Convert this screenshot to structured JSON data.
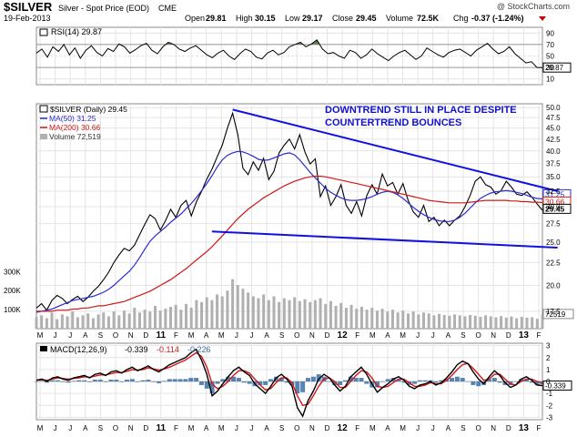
{
  "header": {
    "symbol": "$SILVER",
    "description": "Silver - Spot Price (EOD)",
    "exchange": "CME",
    "date": "19-Feb-2013",
    "watermark": "@ StockCharts.com",
    "quote": {
      "open_label": "Open",
      "open": "29.81",
      "high_label": "High",
      "high": "30.15",
      "low_label": "Low",
      "low": "29.17",
      "close_label": "Close",
      "close": "29.45",
      "volume_label": "Volume",
      "volume": "72.5K",
      "chg_label": "Chg",
      "chg": "-0.37 (-1.24%)"
    }
  },
  "colors": {
    "price": "#000000",
    "ma50": "#2a2ad0",
    "ma200": "#d01818",
    "volume": "#b0b0b0",
    "rsi_fill": "#4a7a3a",
    "trendline": "#1010e0",
    "annotation": "#1010d0",
    "macd_hist": "#3a6ea5",
    "chg_neg": "#c00000"
  },
  "chart_data": [
    {
      "type": "line",
      "panel": "rsi",
      "title": "RSI(14) 29.87",
      "ylim": [
        0,
        100
      ],
      "y_ticks": [
        "90",
        "70",
        "50",
        "30",
        "10"
      ],
      "last_value_label": "29.87",
      "series": [
        {
          "name": "RSI(14)",
          "values": [
            55,
            62,
            48,
            66,
            58,
            70,
            52,
            64,
            46,
            60,
            68,
            56,
            50,
            63,
            58,
            71,
            66,
            55,
            61,
            68,
            72,
            60,
            54,
            66,
            74,
            70,
            62,
            58,
            64,
            68,
            60,
            52,
            47,
            55,
            60,
            50,
            44,
            54,
            62,
            58,
            48,
            45,
            55,
            60,
            52,
            56,
            66,
            70,
            74,
            66,
            71,
            78,
            62,
            54,
            56,
            50,
            46,
            60,
            56,
            46,
            52,
            62,
            54,
            48,
            42,
            50,
            56,
            60,
            52,
            44,
            50,
            64,
            58,
            52,
            48,
            56,
            60,
            62,
            56,
            50,
            60,
            66,
            72,
            62,
            54,
            58,
            66,
            54,
            46,
            38,
            40,
            30,
            29.87
          ]
        }
      ]
    },
    {
      "type": "line",
      "panel": "price",
      "title": "$SILVER (Daily) 29.45",
      "ylim": [
        16,
        51
      ],
      "y_ticks": [
        "50.0",
        "47.5",
        "45.0",
        "42.5",
        "40.0",
        "37.5",
        "35.0",
        "32.5",
        "30.0",
        "27.5",
        "25.0",
        "22.5",
        "20.0",
        "17.5"
      ],
      "scale": "log",
      "legend": [
        "$SILVER (Daily) 29.45",
        "MA(50) 31.25",
        "MA(200) 30.66",
        "Volume 72,519"
      ],
      "legend_placement": "top-left",
      "last_labels": {
        "ma50": "31.25",
        "ma200": "30.66",
        "price": "29.45",
        "volume": "72519"
      },
      "volume_ticks": [
        "300K",
        "200K",
        "100K"
      ],
      "x_month_labels": [
        "M",
        "J",
        "J",
        "A",
        "S",
        "O",
        "N",
        "D",
        "11",
        "F",
        "M",
        "A",
        "M",
        "J",
        "J",
        "A",
        "S",
        "O",
        "N",
        "D",
        "12",
        "F",
        "M",
        "A",
        "M",
        "J",
        "J",
        "A",
        "S",
        "O",
        "N",
        "D",
        "13",
        "F"
      ],
      "series": [
        {
          "name": "$SILVER (Daily)",
          "values": [
            17.8,
            18.2,
            17.6,
            18.5,
            19.0,
            18.7,
            18.2,
            18.6,
            18.9,
            18.4,
            18.8,
            19.4,
            19.9,
            20.6,
            21.4,
            22.5,
            23.4,
            24.2,
            23.9,
            24.6,
            26.0,
            27.4,
            28.8,
            28.2,
            26.6,
            27.9,
            29.6,
            28.4,
            30.2,
            31.0,
            28.6,
            30.8,
            32.5,
            34.6,
            36.4,
            38.8,
            41.2,
            45.0,
            48.6,
            43.5,
            36.6,
            35.4,
            37.8,
            36.2,
            38.5,
            34.5,
            36.0,
            39.6,
            41.2,
            42.5,
            40.4,
            43.5,
            39.8,
            37.4,
            38.4,
            31.6,
            33.4,
            30.2,
            31.6,
            33.6,
            30.2,
            29.0,
            30.8,
            28.6,
            31.8,
            33.6,
            32.0,
            35.5,
            33.4,
            34.0,
            32.0,
            33.8,
            31.0,
            29.2,
            28.4,
            30.2,
            27.8,
            28.4,
            27.2,
            28.0,
            27.2,
            28.0,
            28.6,
            30.0,
            31.8,
            34.2,
            35.0,
            33.6,
            33.2,
            32.0,
            32.6,
            34.2,
            33.2,
            32.0,
            31.8,
            32.4,
            31.5,
            30.4,
            29.45
          ]
        },
        {
          "name": "MA(50)",
          "values": [
            17.4,
            17.5,
            17.6,
            17.7,
            17.9,
            18.1,
            18.3,
            18.5,
            18.6,
            18.7,
            18.8,
            18.9,
            19.1,
            19.3,
            19.6,
            20.0,
            20.5,
            21.0,
            21.5,
            22.2,
            23.1,
            24.1,
            25.1,
            25.8,
            26.4,
            27.0,
            27.7,
            28.3,
            28.9,
            29.7,
            30.5,
            31.5,
            32.6,
            33.8,
            35.2,
            36.8,
            38.2,
            39.1,
            39.6,
            39.9,
            39.8,
            39.4,
            38.9,
            38.3,
            38.1,
            38.2,
            38.6,
            39.0,
            39.4,
            39.6,
            39.2,
            38.2,
            37.0,
            35.8,
            34.8,
            33.9,
            33.0,
            32.3,
            31.8,
            31.4,
            31.1,
            31.0,
            31.0,
            31.1,
            31.3,
            31.6,
            32.0,
            32.3,
            32.5,
            32.3,
            31.9,
            31.3,
            30.6,
            29.9,
            29.3,
            28.8,
            28.4,
            28.1,
            27.9,
            27.8,
            27.8,
            28.0,
            28.4,
            29.0,
            29.8,
            30.6,
            31.3,
            31.8,
            32.2,
            32.4,
            32.5,
            32.6,
            32.5,
            32.3,
            32.1,
            31.8,
            31.5,
            31.3,
            31.25
          ]
        },
        {
          "name": "MA(200)",
          "values": [
            17.5,
            17.5,
            17.5,
            17.5,
            17.6,
            17.6,
            17.6,
            17.7,
            17.7,
            17.8,
            17.8,
            17.9,
            18.0,
            18.0,
            18.1,
            18.2,
            18.3,
            18.4,
            18.6,
            18.8,
            19.0,
            19.2,
            19.4,
            19.7,
            20.0,
            20.3,
            20.6,
            21.0,
            21.4,
            21.8,
            22.3,
            22.8,
            23.3,
            23.8,
            24.4,
            25.1,
            25.8,
            26.6,
            27.4,
            28.2,
            28.9,
            29.6,
            30.2,
            30.8,
            31.4,
            31.9,
            32.4,
            32.9,
            33.4,
            33.8,
            34.2,
            34.5,
            34.8,
            35.0,
            35.1,
            35.1,
            35.0,
            34.8,
            34.6,
            34.4,
            34.2,
            34.0,
            33.8,
            33.6,
            33.4,
            33.2,
            33.0,
            32.8,
            32.6,
            32.4,
            32.2,
            32.0,
            31.8,
            31.6,
            31.4,
            31.2,
            31.0,
            30.9,
            30.8,
            30.7,
            30.6,
            30.6,
            30.6,
            30.6,
            30.7,
            30.8,
            30.9,
            31.0,
            31.0,
            31.0,
            31.0,
            31.0,
            30.9,
            30.9,
            30.8,
            30.8,
            30.7,
            30.7,
            30.66
          ]
        },
        {
          "name": "Volume",
          "values": [
            60,
            70,
            55,
            85,
            50,
            75,
            65,
            90,
            60,
            70,
            80,
            55,
            75,
            85,
            65,
            90,
            70,
            95,
            80,
            110,
            85,
            100,
            90,
            120,
            95,
            105,
            115,
            125,
            100,
            130,
            110,
            150,
            140,
            165,
            150,
            180,
            170,
            200,
            260,
            230,
            210,
            190,
            170,
            160,
            180,
            150,
            170,
            140,
            160,
            150,
            165,
            145,
            155,
            140,
            150,
            160,
            130,
            145,
            120,
            135,
            110,
            125,
            105,
            115,
            100,
            110,
            95,
            105,
            90,
            100,
            85,
            95,
            80,
            90,
            75,
            85,
            80,
            70,
            78,
            72,
            68,
            75,
            70,
            65,
            72,
            68,
            62,
            70,
            65,
            60,
            66,
            58,
            64,
            55,
            62,
            58,
            60,
            52,
            72.5
          ]
        }
      ]
    },
    {
      "type": "line",
      "panel": "macd",
      "title": "MACD(12,26,9) -0.339, -0.114, -0.226",
      "legend": [
        "MACD(12,26,9)",
        "-0.339",
        "-0.114",
        "-0.226"
      ],
      "ylim": [
        -3.2,
        3.2
      ],
      "y_ticks": [
        "3",
        "2",
        "1",
        "0",
        "-1",
        "-2",
        "-3"
      ],
      "last_value_label": "-0.339",
      "x_month_labels": [
        "M",
        "J",
        "J",
        "A",
        "S",
        "O",
        "N",
        "D",
        "11",
        "F",
        "M",
        "A",
        "M",
        "J",
        "J",
        "A",
        "S",
        "O",
        "N",
        "D",
        "12",
        "F",
        "M",
        "A",
        "M",
        "J",
        "J",
        "A",
        "S",
        "O",
        "N",
        "D",
        "13",
        "F"
      ],
      "series": [
        {
          "name": "MACD",
          "values": [
            0.1,
            0.2,
            0.0,
            0.3,
            0.4,
            0.2,
            0.1,
            0.3,
            0.4,
            0.5,
            0.3,
            0.6,
            0.7,
            0.5,
            0.8,
            0.9,
            0.7,
            1.0,
            1.2,
            0.9,
            1.1,
            1.3,
            1.0,
            0.8,
            1.1,
            1.4,
            1.6,
            1.8,
            2.0,
            2.4,
            2.7,
            1.8,
            0.6,
            -1.2,
            -0.8,
            -0.2,
            0.4,
            0.9,
            1.2,
            0.8,
            0.5,
            -0.2,
            -0.6,
            -1.0,
            -0.4,
            0.3,
            0.6,
            0.2,
            -0.4,
            -2.2,
            -2.9,
            -1.6,
            -0.8,
            0.2,
            0.6,
            0.3,
            -0.3,
            -0.8,
            -0.4,
            0.4,
            0.8,
            1.2,
            0.6,
            -0.2,
            -0.9,
            -0.5,
            -0.2,
            0.2,
            0.4,
            0.1,
            -0.4,
            -0.6,
            -0.3,
            -0.2,
            0.0,
            -0.3,
            -0.1,
            0.3,
            0.8,
            1.4,
            1.7,
            1.5,
            0.8,
            0.2,
            -0.2,
            0.4,
            0.9,
            0.5,
            -0.1,
            -0.5,
            -0.3,
            0.2,
            0.4,
            0.1,
            -0.3,
            -0.34
          ]
        },
        {
          "name": "Signal",
          "values": [
            0.1,
            0.15,
            0.1,
            0.2,
            0.3,
            0.25,
            0.2,
            0.25,
            0.3,
            0.4,
            0.35,
            0.45,
            0.55,
            0.55,
            0.65,
            0.75,
            0.75,
            0.85,
            1.0,
            0.95,
            1.0,
            1.15,
            1.05,
            0.95,
            1.05,
            1.2,
            1.4,
            1.6,
            1.8,
            2.1,
            2.4,
            2.1,
            1.2,
            -0.2,
            -0.6,
            -0.4,
            0.0,
            0.5,
            0.9,
            0.9,
            0.7,
            0.2,
            -0.3,
            -0.7,
            -0.6,
            -0.1,
            0.3,
            0.3,
            -0.1,
            -1.2,
            -2.0,
            -1.9,
            -1.2,
            -0.4,
            0.2,
            0.3,
            0.0,
            -0.5,
            -0.5,
            0.0,
            0.5,
            0.9,
            0.8,
            0.3,
            -0.4,
            -0.5,
            -0.4,
            -0.1,
            0.2,
            0.2,
            -0.1,
            -0.4,
            -0.4,
            -0.3,
            -0.1,
            -0.2,
            -0.2,
            0.1,
            0.5,
            1.0,
            1.4,
            1.5,
            1.1,
            0.6,
            0.1,
            0.2,
            0.6,
            0.6,
            0.2,
            -0.2,
            -0.3,
            0.0,
            0.2,
            0.2,
            0.0,
            -0.11
          ]
        },
        {
          "name": "Histogram",
          "values": [
            0.0,
            0.05,
            -0.1,
            0.1,
            0.1,
            -0.05,
            -0.1,
            0.05,
            0.1,
            0.1,
            -0.05,
            0.15,
            0.15,
            -0.05,
            0.15,
            0.15,
            -0.05,
            0.15,
            0.2,
            -0.05,
            0.1,
            0.15,
            -0.05,
            -0.15,
            0.05,
            0.2,
            0.2,
            0.2,
            0.2,
            0.3,
            0.3,
            -0.3,
            -0.6,
            -1.0,
            -0.2,
            0.2,
            0.4,
            0.4,
            0.3,
            -0.1,
            -0.2,
            -0.4,
            -0.3,
            -0.3,
            0.2,
            0.4,
            0.3,
            -0.1,
            -0.3,
            -1.0,
            -0.9,
            0.3,
            0.4,
            0.6,
            0.4,
            0.0,
            -0.3,
            -0.3,
            0.1,
            0.4,
            0.3,
            0.3,
            -0.2,
            -0.5,
            -0.5,
            0.0,
            0.2,
            0.3,
            0.2,
            -0.1,
            -0.3,
            -0.2,
            0.1,
            0.1,
            0.1,
            -0.1,
            0.1,
            0.2,
            0.3,
            0.4,
            0.3,
            0.0,
            -0.3,
            -0.4,
            -0.3,
            0.2,
            0.3,
            -0.1,
            -0.3,
            -0.3,
            0.0,
            0.2,
            0.2,
            -0.1,
            -0.3,
            -0.23
          ]
        }
      ]
    }
  ],
  "annotation": {
    "line1": "DOWNTREND STILL IN PLACE DESPITE",
    "line2": "COUNTERTREND BOUNCES"
  },
  "trendlines": [
    {
      "name": "upper",
      "from": {
        "t": 38,
        "y": 49.5
      },
      "to": {
        "t": 96,
        "y": 32.5
      }
    },
    {
      "name": "lower",
      "from": {
        "t": 34,
        "y": 26.4
      },
      "to": {
        "t": 96,
        "y": 24.3
      }
    }
  ]
}
